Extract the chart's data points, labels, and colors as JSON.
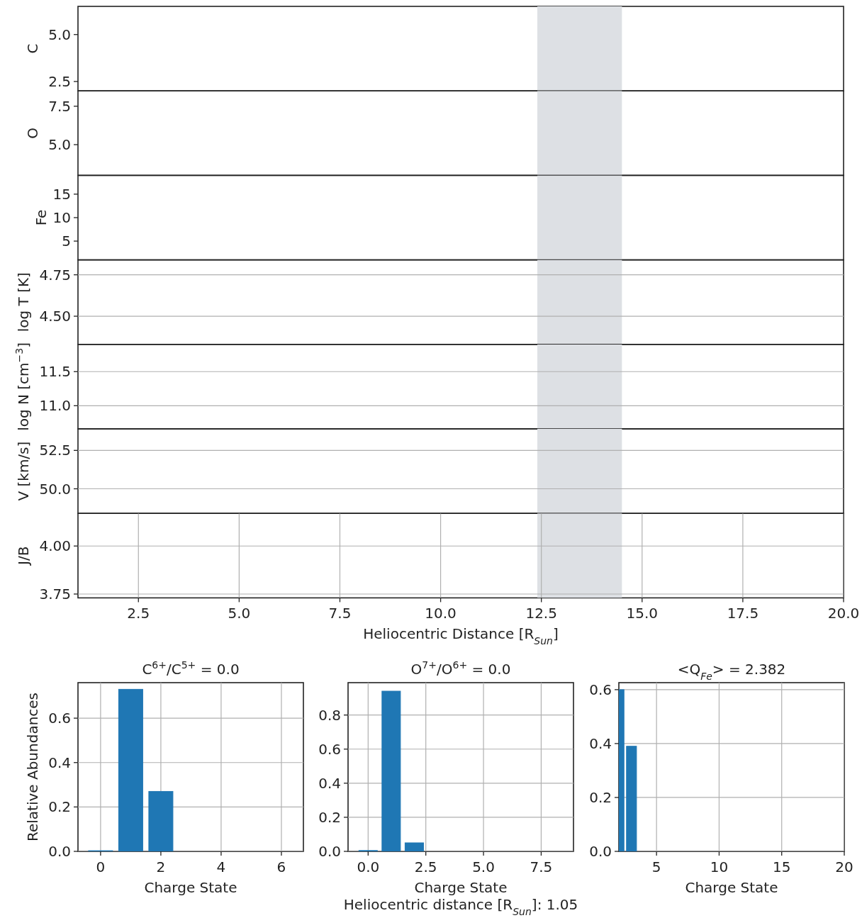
{
  "chart_data": [
    {
      "type": "line",
      "ylabel": "C",
      "xlim": [
        1,
        20
      ],
      "ylim": [
        2.0,
        6.5
      ],
      "yticks": [
        {
          "value": 2.5,
          "label": "2.5"
        },
        {
          "value": 5,
          "label": "5.0"
        }
      ],
      "tick_labels": "y",
      "bands": [
        {
          "axis": "x",
          "from": 12.4,
          "to": 14.5,
          "color": "#dde0e4"
        }
      ]
    },
    {
      "type": "line",
      "ylabel": "O",
      "xlim": [
        1,
        20
      ],
      "ylim": [
        3.0,
        8.5
      ],
      "yticks": [
        {
          "value": 5,
          "label": "5.0"
        },
        {
          "value": 7.5,
          "label": "7.5"
        }
      ],
      "tick_labels": "y",
      "bands": [
        {
          "axis": "x",
          "from": 12.4,
          "to": 14.5,
          "color": "#dde0e4"
        }
      ]
    },
    {
      "type": "line",
      "ylabel": "Fe",
      "xlim": [
        1,
        20
      ],
      "ylim": [
        1,
        19
      ],
      "yticks": [
        5,
        10,
        15
      ],
      "tick_labels": "y",
      "bands": [
        {
          "axis": "x",
          "from": 12.4,
          "to": 14.5,
          "color": "#dde0e4"
        }
      ]
    },
    {
      "type": "line",
      "ylabel": "log T [K]",
      "xlim": [
        1,
        20
      ],
      "ylim": [
        4.33,
        4.84
      ],
      "yticks": [
        {
          "value": 4.5,
          "label": "4.50"
        },
        {
          "value": 4.75,
          "label": "4.75"
        }
      ],
      "grid": "y",
      "tick_labels": "y",
      "bands": [
        {
          "axis": "x",
          "from": 12.4,
          "to": 14.5,
          "color": "#dde0e4"
        }
      ]
    },
    {
      "type": "line",
      "ylabel": "log N [cm$^{−3}$]",
      "xlim": [
        1,
        20
      ],
      "ylim": [
        10.66,
        11.9
      ],
      "yticks": [
        {
          "value": 11,
          "label": "11.0"
        },
        11.5
      ],
      "grid": "y",
      "tick_labels": "y",
      "bands": [
        {
          "axis": "x",
          "from": 12.4,
          "to": 14.5,
          "color": "#dde0e4"
        }
      ]
    },
    {
      "type": "line",
      "ylabel": "V [km/s]",
      "xlim": [
        1,
        20
      ],
      "ylim": [
        48.4,
        53.9
      ],
      "yticks": [
        {
          "value": 50,
          "label": "50.0"
        },
        52.5
      ],
      "grid": "y",
      "tick_labels": "y",
      "bands": [
        {
          "axis": "x",
          "from": 12.4,
          "to": 14.5,
          "color": "#dde0e4"
        }
      ]
    },
    {
      "type": "line",
      "ylabel": "J/B",
      "xlabel": "Heliocentric Distance [R$_{Sun}$]",
      "xlim": [
        1,
        20
      ],
      "ylim": [
        3.73,
        4.17
      ],
      "xticks": [
        2.5,
        {
          "value": 5,
          "label": "5.0"
        },
        7.5,
        {
          "value": 10,
          "label": "10.0"
        },
        12.5,
        {
          "value": 15,
          "label": "15.0"
        },
        17.5,
        {
          "value": 20,
          "label": "20.0"
        }
      ],
      "yticks": [
        3.75,
        {
          "value": 4,
          "label": "4.00"
        }
      ],
      "grid": true,
      "bands": [
        {
          "axis": "x",
          "from": 12.4,
          "to": 14.5,
          "color": "#dde0e4"
        }
      ]
    },
    {
      "type": "bar",
      "title": "C$^{6+}$/C$^{5+}$ = 0.0",
      "xlabel": "Charge State",
      "ylabel": "Relative Abundances",
      "x": [
        0,
        1,
        2
      ],
      "values": [
        0.003,
        0.73,
        0.27
      ],
      "color": "#1f77b4",
      "xlim": [
        -0.75,
        6.73
      ],
      "ylim": [
        0,
        0.76
      ],
      "xticks": [
        0,
        2,
        4,
        6
      ],
      "yticks": [
        {
          "value": 0,
          "label": "0.0"
        },
        0.2,
        0.4,
        0.6
      ],
      "grid": true
    },
    {
      "type": "bar",
      "title": "O$^{7+}$/O$^{6+}$ = 0.0",
      "xlabel": "Charge State",
      "annotations": [
        "Heliocentric distance [R$_{Sun}$]: 1.05"
      ],
      "x": [
        0,
        1,
        2
      ],
      "values": [
        0.005,
        0.94,
        0.05
      ],
      "color": "#1f77b4",
      "xlim": [
        -0.87,
        8.9
      ],
      "ylim": [
        0,
        0.99
      ],
      "xticks": [
        {
          "value": 0,
          "label": "0.0"
        },
        2.5,
        {
          "value": 5,
          "label": "5.0"
        },
        7.5
      ],
      "yticks": [
        {
          "value": 0,
          "label": "0.0"
        },
        0.2,
        0.4,
        0.6,
        0.8
      ],
      "grid": true
    },
    {
      "type": "bar",
      "title": "<Q$_{Fe}$> = 2.382",
      "xlabel": "Charge State",
      "x": [
        2,
        3
      ],
      "values": [
        0.6,
        0.39
      ],
      "color": "#1f77b4",
      "xlim": [
        1.99,
        20
      ],
      "ylim": [
        0,
        0.626
      ],
      "xticks": [
        5,
        10,
        15,
        20
      ],
      "yticks": [
        {
          "value": 0,
          "label": "0.0"
        },
        0.2,
        0.4,
        0.6
      ],
      "grid": true
    }
  ]
}
